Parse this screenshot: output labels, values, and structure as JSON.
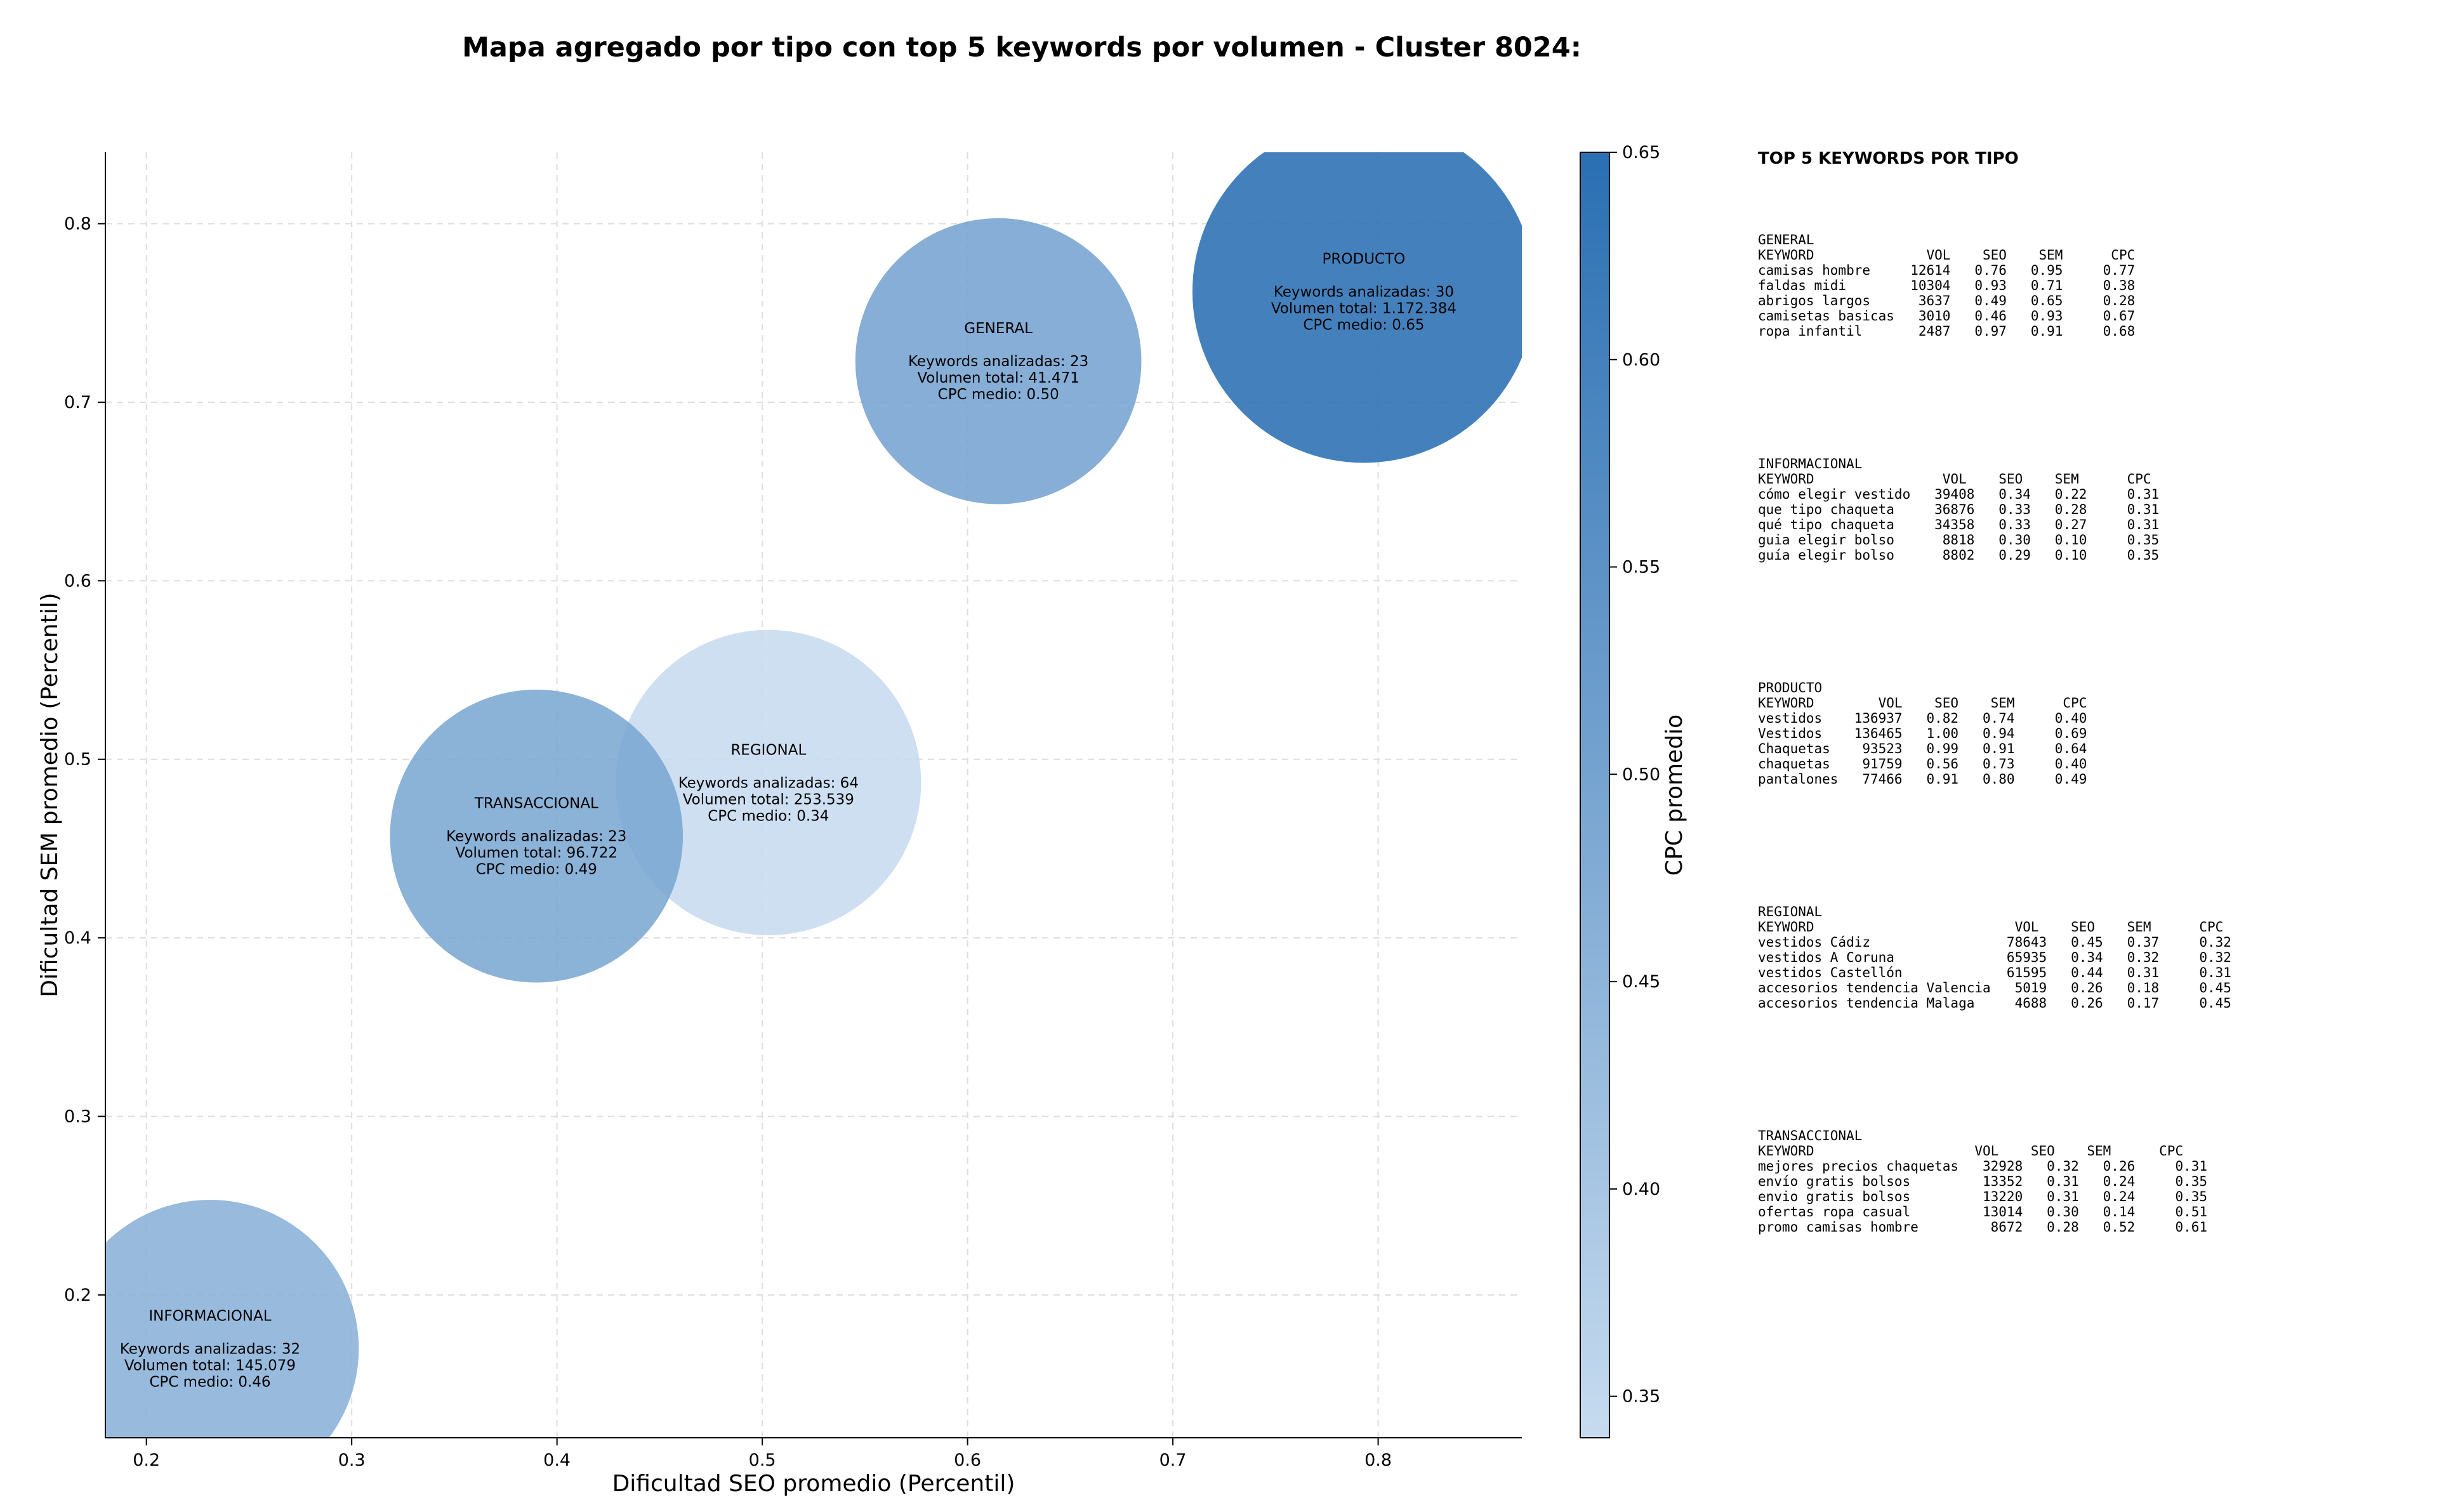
{
  "chart_data": {
    "type": "scatter",
    "title": "Mapa agregado por tipo con top 5 keywords por volumen - Cluster 8024:",
    "xlabel": "Dificultad SEO promedio (Percentil)",
    "ylabel": "Dificultad SEM promedio (Percentil)",
    "colorbar_label": "CPC promedio",
    "xlim": [
      0.18,
      0.87
    ],
    "ylim": [
      0.12,
      0.84
    ],
    "x_ticks": [
      "0.2",
      "0.3",
      "0.4",
      "0.5",
      "0.6",
      "0.7",
      "0.8"
    ],
    "y_ticks": [
      "0.2",
      "0.3",
      "0.4",
      "0.5",
      "0.6",
      "0.7",
      "0.8"
    ],
    "colorbar_range": [
      0.34,
      0.65
    ],
    "colorbar_ticks": [
      "0.35",
      "0.40",
      "0.45",
      "0.50",
      "0.55",
      "0.60",
      "0.65"
    ],
    "colorscale": [
      "#c6dbef",
      "#2a6fb3"
    ],
    "grid": true,
    "points": [
      {
        "type": "GENERAL",
        "x": 0.615,
        "y": 0.723,
        "cpc": 0.5,
        "volume": 41471,
        "lines": [
          "GENERAL",
          "",
          "Keywords analizadas: 23",
          "Volumen total: 41.471",
          "CPC medio: 0.50"
        ]
      },
      {
        "type": "PRODUCTO",
        "x": 0.793,
        "y": 0.762,
        "cpc": 0.65,
        "volume": 1172384,
        "lines": [
          "PRODUCTO",
          "",
          "Keywords analizadas: 30",
          "Volumen total: 1.172.384",
          "CPC medio: 0.65"
        ]
      },
      {
        "type": "REGIONAL",
        "x": 0.503,
        "y": 0.487,
        "cpc": 0.34,
        "volume": 253539,
        "lines": [
          "REGIONAL",
          "",
          "Keywords analizadas: 64",
          "Volumen total: 253.539",
          "CPC medio: 0.34"
        ]
      },
      {
        "type": "TRANSACCIONAL",
        "x": 0.39,
        "y": 0.457,
        "cpc": 0.49,
        "volume": 96722,
        "lines": [
          "TRANSACCIONAL",
          "",
          "Keywords analizadas: 23",
          "Volumen total: 96.722",
          "CPC medio: 0.49"
        ]
      },
      {
        "type": "INFORMACIONAL",
        "x": 0.231,
        "y": 0.17,
        "cpc": 0.46,
        "volume": 145079,
        "lines": [
          "INFORMACIONAL",
          "",
          "Keywords analizadas: 32",
          "Volumen total: 145.079",
          "CPC medio: 0.46"
        ]
      }
    ]
  },
  "side_panel": {
    "heading": "TOP 5 KEYWORDS POR TIPO",
    "blocks": [
      {
        "name": "GENERAL",
        "header": "KEYWORD              VOL    SEO    SEM      CPC",
        "rows": [
          "camisas hombre     12614   0.76   0.95     0.77",
          "faldas midi        10304   0.93   0.71     0.38",
          "abrigos largos      3637   0.49   0.65     0.28",
          "camisetas basicas   3010   0.46   0.93     0.67",
          "ropa infantil       2487   0.97   0.91     0.68"
        ]
      },
      {
        "name": "INFORMACIONAL",
        "header": "KEYWORD                VOL    SEO    SEM      CPC",
        "rows": [
          "cómo elegir vestido   39408   0.34   0.22     0.31",
          "que tipo chaqueta     36876   0.33   0.28     0.31",
          "qué tipo chaqueta     34358   0.33   0.27     0.31",
          "guia elegir bolso      8818   0.30   0.10     0.35",
          "guía elegir bolso      8802   0.29   0.10     0.35"
        ]
      },
      {
        "name": "PRODUCTO",
        "header": "KEYWORD        VOL    SEO    SEM      CPC",
        "rows": [
          "vestidos    136937   0.82   0.74     0.40",
          "Vestidos    136465   1.00   0.94     0.69",
          "Chaquetas    93523   0.99   0.91     0.64",
          "chaquetas    91759   0.56   0.73     0.40",
          "pantalones   77466   0.91   0.80     0.49"
        ]
      },
      {
        "name": "REGIONAL",
        "header": "KEYWORD                         VOL    SEO    SEM      CPC",
        "rows": [
          "vestidos Cádiz                 78643   0.45   0.37     0.32",
          "vestidos A Coruna              65935   0.34   0.32     0.32",
          "vestidos Castellón             61595   0.44   0.31     0.31",
          "accesorios tendencia Valencia   5019   0.26   0.18     0.45",
          "accesorios tendencia Malaga     4688   0.26   0.17     0.45"
        ]
      },
      {
        "name": "TRANSACCIONAL",
        "header": "KEYWORD                    VOL    SEO    SEM      CPC",
        "rows": [
          "mejores precios chaquetas   32928   0.32   0.26     0.31",
          "envío gratis bolsos         13352   0.31   0.24     0.35",
          "envio gratis bolsos         13220   0.31   0.24     0.35",
          "ofertas ropa casual         13014   0.30   0.14     0.51",
          "promo camisas hombre         8672   0.28   0.52     0.61"
        ]
      }
    ]
  }
}
